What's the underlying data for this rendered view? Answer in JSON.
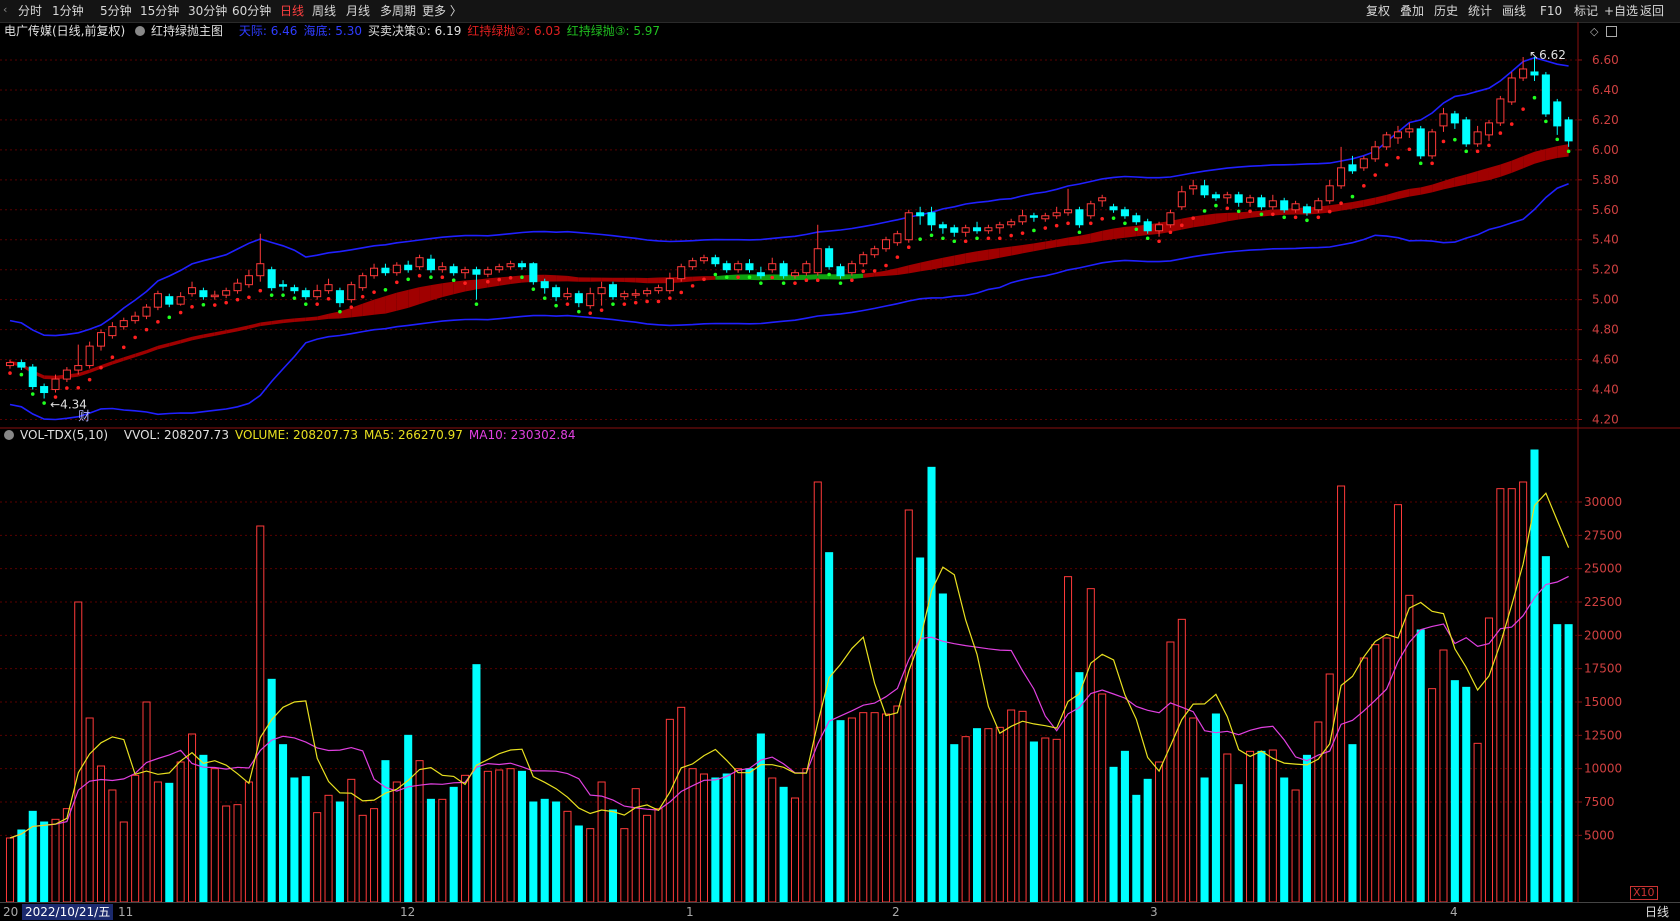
{
  "topbar": {
    "tabs": [
      {
        "label": "分时",
        "active": false
      },
      {
        "label": "1分钟",
        "active": false
      },
      {
        "label": "5分钟",
        "active": false
      },
      {
        "label": "15分钟",
        "active": false
      },
      {
        "label": "30分钟",
        "active": false
      },
      {
        "label": "60分钟",
        "active": false
      },
      {
        "label": "日线",
        "active": true
      },
      {
        "label": "周线",
        "active": false
      },
      {
        "label": "月线",
        "active": false
      },
      {
        "label": "多周期",
        "active": false
      },
      {
        "label": "更多 〉",
        "active": false
      }
    ],
    "right_buttons": [
      "复权",
      "叠加",
      "历史",
      "统计",
      "画线",
      "F10",
      "标记",
      "+自选",
      "返回"
    ]
  },
  "main_indicator": {
    "stock": "电广传媒(日线,前复权)",
    "indicator_name": "红持绿抛主图",
    "items": [
      {
        "label": "天际: 6.46",
        "color": "#2f3cff"
      },
      {
        "label": "海底: 5.30",
        "color": "#2f3cff"
      },
      {
        "label": "买卖决策①: 6.19",
        "color": "#e0e0e0"
      },
      {
        "label": "红持绿抛②: 6.03",
        "color": "#e02020"
      },
      {
        "label": "红持绿抛③: 5.97",
        "color": "#20c020"
      }
    ]
  },
  "volume_indicator": {
    "name": "VOL-TDX(5,10)",
    "items": [
      {
        "label": "VVOL: 208207.73",
        "color": "#e0e0e0"
      },
      {
        "label": "VOLUME: 208207.73",
        "color": "#e8e020"
      },
      {
        "label": "MA5: 266270.97",
        "color": "#e8e020"
      },
      {
        "label": "MA10: 230302.84",
        "color": "#e040e0"
      }
    ]
  },
  "price_axis": [
    "6.60",
    "6.40",
    "6.20",
    "6.00",
    "5.80",
    "5.60",
    "5.40",
    "5.20",
    "5.00",
    "4.80",
    "4.60",
    "4.40",
    "4.20"
  ],
  "volume_axis": [
    "30000",
    "27500",
    "25000",
    "22500",
    "20000",
    "17500",
    "15000",
    "12500",
    "10000",
    "7500",
    "5000"
  ],
  "annotations": {
    "low": "4.34",
    "high": "6.62",
    "fin_marker": "财",
    "scale": "X10"
  },
  "bottom": {
    "cursor_date": "2022/10/21/五",
    "left_tick": "20",
    "months": [
      "11",
      "12",
      "1",
      "2",
      "3",
      "4"
    ],
    "timeframe": "日线"
  },
  "colors": {
    "up": "#ff3a3a",
    "down": "#00ffff",
    "upper_band": "#2020ff",
    "ribbon_red": "#a00000",
    "ribbon_green": "#10a010",
    "ma5": "#e8e020",
    "ma10": "#e040e0",
    "grid": "#5a0000"
  },
  "chart_data": {
    "type": "candlestick",
    "ylim": [
      4.15,
      6.72
    ],
    "candles": [
      {
        "o": 4.56,
        "c": 4.58,
        "h": 4.6,
        "l": 4.54,
        "vol": 4800
      },
      {
        "o": 4.58,
        "c": 4.55,
        "h": 4.6,
        "l": 4.53,
        "vol": 5400
      },
      {
        "o": 4.55,
        "c": 4.42,
        "h": 4.57,
        "l": 4.4,
        "vol": 6800
      },
      {
        "o": 4.42,
        "c": 4.38,
        "h": 4.44,
        "l": 4.34,
        "vol": 6000
      },
      {
        "o": 4.4,
        "c": 4.47,
        "h": 4.5,
        "l": 4.38,
        "vol": 6200
      },
      {
        "o": 4.47,
        "c": 4.53,
        "h": 4.55,
        "l": 4.45,
        "vol": 7000
      },
      {
        "o": 4.53,
        "c": 4.56,
        "h": 4.7,
        "l": 4.5,
        "vol": 22500
      },
      {
        "o": 4.56,
        "c": 4.69,
        "h": 4.72,
        "l": 4.54,
        "vol": 13800
      },
      {
        "o": 4.69,
        "c": 4.78,
        "h": 4.8,
        "l": 4.66,
        "vol": 10200
      },
      {
        "o": 4.76,
        "c": 4.82,
        "h": 4.85,
        "l": 4.74,
        "vol": 8400
      },
      {
        "o": 4.82,
        "c": 4.86,
        "h": 4.88,
        "l": 4.8,
        "vol": 6000
      },
      {
        "o": 4.86,
        "c": 4.89,
        "h": 4.92,
        "l": 4.84,
        "vol": 9500
      },
      {
        "o": 4.89,
        "c": 4.95,
        "h": 4.97,
        "l": 4.87,
        "vol": 15000
      },
      {
        "o": 4.95,
        "c": 5.04,
        "h": 5.06,
        "l": 4.93,
        "vol": 9000
      },
      {
        "o": 5.02,
        "c": 4.97,
        "h": 5.04,
        "l": 4.95,
        "vol": 8900
      },
      {
        "o": 4.97,
        "c": 5.02,
        "h": 5.05,
        "l": 4.96,
        "vol": 10500
      },
      {
        "o": 5.04,
        "c": 5.08,
        "h": 5.12,
        "l": 5.02,
        "vol": 12600
      },
      {
        "o": 5.06,
        "c": 5.02,
        "h": 5.08,
        "l": 5.0,
        "vol": 11000
      },
      {
        "o": 5.02,
        "c": 5.03,
        "h": 5.06,
        "l": 5.0,
        "vol": 10000
      },
      {
        "o": 5.03,
        "c": 5.06,
        "h": 5.08,
        "l": 5.01,
        "vol": 7200
      },
      {
        "o": 5.06,
        "c": 5.11,
        "h": 5.14,
        "l": 5.04,
        "vol": 7300
      },
      {
        "o": 5.1,
        "c": 5.16,
        "h": 5.2,
        "l": 5.08,
        "vol": 9000
      },
      {
        "o": 5.16,
        "c": 5.24,
        "h": 5.44,
        "l": 5.12,
        "vol": 28200
      },
      {
        "o": 5.2,
        "c": 5.08,
        "h": 5.22,
        "l": 5.06,
        "vol": 16700
      },
      {
        "o": 5.1,
        "c": 5.09,
        "h": 5.13,
        "l": 5.06,
        "vol": 11800
      },
      {
        "o": 5.08,
        "c": 5.06,
        "h": 5.1,
        "l": 5.04,
        "vol": 9300
      },
      {
        "o": 5.06,
        "c": 5.02,
        "h": 5.08,
        "l": 5.0,
        "vol": 9400
      },
      {
        "o": 5.02,
        "c": 5.06,
        "h": 5.1,
        "l": 5.0,
        "vol": 6700
      },
      {
        "o": 5.06,
        "c": 5.1,
        "h": 5.14,
        "l": 5.04,
        "vol": 8000
      },
      {
        "o": 5.06,
        "c": 4.98,
        "h": 5.08,
        "l": 4.95,
        "vol": 7500
      },
      {
        "o": 5.0,
        "c": 5.1,
        "h": 5.12,
        "l": 4.98,
        "vol": 9200
      },
      {
        "o": 5.08,
        "c": 5.16,
        "h": 5.18,
        "l": 5.06,
        "vol": 6500
      },
      {
        "o": 5.16,
        "c": 5.21,
        "h": 5.24,
        "l": 5.14,
        "vol": 7000
      },
      {
        "o": 5.21,
        "c": 5.18,
        "h": 5.24,
        "l": 5.16,
        "vol": 10600
      },
      {
        "o": 5.18,
        "c": 5.23,
        "h": 5.25,
        "l": 5.16,
        "vol": 9000
      },
      {
        "o": 5.23,
        "c": 5.2,
        "h": 5.26,
        "l": 5.18,
        "vol": 12500
      },
      {
        "o": 5.22,
        "c": 5.28,
        "h": 5.3,
        "l": 5.2,
        "vol": 10600
      },
      {
        "o": 5.27,
        "c": 5.2,
        "h": 5.3,
        "l": 5.18,
        "vol": 7700
      },
      {
        "o": 5.2,
        "c": 5.22,
        "h": 5.25,
        "l": 5.18,
        "vol": 7700
      },
      {
        "o": 5.22,
        "c": 5.18,
        "h": 5.24,
        "l": 5.16,
        "vol": 8600
      },
      {
        "o": 5.18,
        "c": 5.2,
        "h": 5.22,
        "l": 5.14,
        "vol": 9500
      },
      {
        "o": 5.2,
        "c": 5.17,
        "h": 5.22,
        "l": 5.0,
        "vol": 17800
      },
      {
        "o": 5.17,
        "c": 5.2,
        "h": 5.22,
        "l": 5.15,
        "vol": 9800
      },
      {
        "o": 5.2,
        "c": 5.22,
        "h": 5.24,
        "l": 5.18,
        "vol": 9900
      },
      {
        "o": 5.22,
        "c": 5.24,
        "h": 5.26,
        "l": 5.2,
        "vol": 10000
      },
      {
        "o": 5.24,
        "c": 5.22,
        "h": 5.26,
        "l": 5.2,
        "vol": 9800
      },
      {
        "o": 5.24,
        "c": 5.12,
        "h": 5.25,
        "l": 5.1,
        "vol": 7500
      },
      {
        "o": 5.12,
        "c": 5.08,
        "h": 5.14,
        "l": 5.04,
        "vol": 7700
      },
      {
        "o": 5.08,
        "c": 5.02,
        "h": 5.1,
        "l": 4.99,
        "vol": 7500
      },
      {
        "o": 5.02,
        "c": 5.04,
        "h": 5.08,
        "l": 5.0,
        "vol": 6800
      },
      {
        "o": 5.04,
        "c": 4.98,
        "h": 5.06,
        "l": 4.95,
        "vol": 5700
      },
      {
        "o": 4.96,
        "c": 5.04,
        "h": 5.08,
        "l": 4.94,
        "vol": 5500
      },
      {
        "o": 5.04,
        "c": 5.08,
        "h": 5.12,
        "l": 4.96,
        "vol": 9000
      },
      {
        "o": 5.1,
        "c": 5.02,
        "h": 5.12,
        "l": 5.0,
        "vol": 6900
      },
      {
        "o": 5.02,
        "c": 5.04,
        "h": 5.06,
        "l": 5.0,
        "vol": 5500
      },
      {
        "o": 5.03,
        "c": 5.04,
        "h": 5.07,
        "l": 5.01,
        "vol": 8500
      },
      {
        "o": 5.04,
        "c": 5.06,
        "h": 5.08,
        "l": 5.02,
        "vol": 6500
      },
      {
        "o": 5.06,
        "c": 5.08,
        "h": 5.1,
        "l": 5.04,
        "vol": 7000
      },
      {
        "o": 5.06,
        "c": 5.14,
        "h": 5.18,
        "l": 5.04,
        "vol": 13700
      },
      {
        "o": 5.14,
        "c": 5.22,
        "h": 5.24,
        "l": 5.12,
        "vol": 14600
      },
      {
        "o": 5.22,
        "c": 5.26,
        "h": 5.28,
        "l": 5.2,
        "vol": 10000
      },
      {
        "o": 5.26,
        "c": 5.28,
        "h": 5.3,
        "l": 5.24,
        "vol": 9600
      },
      {
        "o": 5.28,
        "c": 5.24,
        "h": 5.3,
        "l": 5.22,
        "vol": 9300
      },
      {
        "o": 5.24,
        "c": 5.2,
        "h": 5.26,
        "l": 5.18,
        "vol": 9600
      },
      {
        "o": 5.2,
        "c": 5.24,
        "h": 5.26,
        "l": 5.18,
        "vol": 10000
      },
      {
        "o": 5.24,
        "c": 5.2,
        "h": 5.27,
        "l": 5.18,
        "vol": 10000
      },
      {
        "o": 5.18,
        "c": 5.16,
        "h": 5.22,
        "l": 5.14,
        "vol": 12600
      },
      {
        "o": 5.2,
        "c": 5.24,
        "h": 5.28,
        "l": 5.18,
        "vol": 9300
      },
      {
        "o": 5.24,
        "c": 5.16,
        "h": 5.26,
        "l": 5.14,
        "vol": 8600
      },
      {
        "o": 5.16,
        "c": 5.18,
        "h": 5.2,
        "l": 5.14,
        "vol": 7800
      },
      {
        "o": 5.18,
        "c": 5.24,
        "h": 5.26,
        "l": 5.16,
        "vol": 10000
      },
      {
        "o": 5.18,
        "c": 5.34,
        "h": 5.5,
        "l": 5.16,
        "vol": 31500
      },
      {
        "o": 5.34,
        "c": 5.22,
        "h": 5.36,
        "l": 5.2,
        "vol": 26200
      },
      {
        "o": 5.22,
        "c": 5.16,
        "h": 5.24,
        "l": 5.14,
        "vol": 13600
      },
      {
        "o": 5.18,
        "c": 5.24,
        "h": 5.26,
        "l": 5.16,
        "vol": 13800
      },
      {
        "o": 5.24,
        "c": 5.3,
        "h": 5.32,
        "l": 5.22,
        "vol": 14200
      },
      {
        "o": 5.3,
        "c": 5.34,
        "h": 5.36,
        "l": 5.28,
        "vol": 14200
      },
      {
        "o": 5.34,
        "c": 5.4,
        "h": 5.42,
        "l": 5.32,
        "vol": 14100
      },
      {
        "o": 5.38,
        "c": 5.44,
        "h": 5.46,
        "l": 5.36,
        "vol": 14700
      },
      {
        "o": 5.4,
        "c": 5.58,
        "h": 5.6,
        "l": 5.38,
        "vol": 29400
      },
      {
        "o": 5.58,
        "c": 5.56,
        "h": 5.62,
        "l": 5.5,
        "vol": 25800
      },
      {
        "o": 5.58,
        "c": 5.5,
        "h": 5.62,
        "l": 5.46,
        "vol": 32600
      },
      {
        "o": 5.5,
        "c": 5.48,
        "h": 5.52,
        "l": 5.44,
        "vol": 23100
      },
      {
        "o": 5.48,
        "c": 5.45,
        "h": 5.5,
        "l": 5.42,
        "vol": 11800
      },
      {
        "o": 5.45,
        "c": 5.48,
        "h": 5.5,
        "l": 5.42,
        "vol": 12400
      },
      {
        "o": 5.48,
        "c": 5.46,
        "h": 5.52,
        "l": 5.44,
        "vol": 13000
      },
      {
        "o": 5.46,
        "c": 5.48,
        "h": 5.5,
        "l": 5.44,
        "vol": 13000
      },
      {
        "o": 5.48,
        "c": 5.5,
        "h": 5.52,
        "l": 5.44,
        "vol": 13100
      },
      {
        "o": 5.5,
        "c": 5.52,
        "h": 5.54,
        "l": 5.48,
        "vol": 14400
      },
      {
        "o": 5.52,
        "c": 5.56,
        "h": 5.6,
        "l": 5.5,
        "vol": 14300
      },
      {
        "o": 5.56,
        "c": 5.55,
        "h": 5.58,
        "l": 5.52,
        "vol": 12000
      },
      {
        "o": 5.54,
        "c": 5.56,
        "h": 5.58,
        "l": 5.52,
        "vol": 12300
      },
      {
        "o": 5.56,
        "c": 5.58,
        "h": 5.62,
        "l": 5.54,
        "vol": 12200
      },
      {
        "o": 5.58,
        "c": 5.6,
        "h": 5.74,
        "l": 5.56,
        "vol": 24400
      },
      {
        "o": 5.6,
        "c": 5.5,
        "h": 5.62,
        "l": 5.48,
        "vol": 17200
      },
      {
        "o": 5.56,
        "c": 5.64,
        "h": 5.66,
        "l": 5.54,
        "vol": 23500
      },
      {
        "o": 5.66,
        "c": 5.68,
        "h": 5.7,
        "l": 5.62,
        "vol": 15600
      },
      {
        "o": 5.62,
        "c": 5.6,
        "h": 5.64,
        "l": 5.58,
        "vol": 10100
      },
      {
        "o": 5.6,
        "c": 5.56,
        "h": 5.62,
        "l": 5.54,
        "vol": 11300
      },
      {
        "o": 5.56,
        "c": 5.52,
        "h": 5.58,
        "l": 5.5,
        "vol": 8000
      },
      {
        "o": 5.52,
        "c": 5.46,
        "h": 5.54,
        "l": 5.44,
        "vol": 9200
      },
      {
        "o": 5.46,
        "c": 5.5,
        "h": 5.52,
        "l": 5.42,
        "vol": 10500
      },
      {
        "o": 5.5,
        "c": 5.58,
        "h": 5.6,
        "l": 5.48,
        "vol": 19500
      },
      {
        "o": 5.62,
        "c": 5.72,
        "h": 5.76,
        "l": 5.6,
        "vol": 21200
      },
      {
        "o": 5.74,
        "c": 5.76,
        "h": 5.8,
        "l": 5.7,
        "vol": 13800
      },
      {
        "o": 5.76,
        "c": 5.7,
        "h": 5.8,
        "l": 5.68,
        "vol": 9300
      },
      {
        "o": 5.7,
        "c": 5.68,
        "h": 5.72,
        "l": 5.66,
        "vol": 14100
      },
      {
        "o": 5.68,
        "c": 5.7,
        "h": 5.72,
        "l": 5.64,
        "vol": 11100
      },
      {
        "o": 5.7,
        "c": 5.65,
        "h": 5.72,
        "l": 5.62,
        "vol": 8800
      },
      {
        "o": 5.65,
        "c": 5.68,
        "h": 5.7,
        "l": 5.62,
        "vol": 11300
      },
      {
        "o": 5.68,
        "c": 5.62,
        "h": 5.7,
        "l": 5.6,
        "vol": 11300
      },
      {
        "o": 5.62,
        "c": 5.66,
        "h": 5.7,
        "l": 5.6,
        "vol": 11400
      },
      {
        "o": 5.66,
        "c": 5.6,
        "h": 5.68,
        "l": 5.58,
        "vol": 9300
      },
      {
        "o": 5.6,
        "c": 5.64,
        "h": 5.66,
        "l": 5.58,
        "vol": 8400
      },
      {
        "o": 5.62,
        "c": 5.58,
        "h": 5.64,
        "l": 5.56,
        "vol": 11000
      },
      {
        "o": 5.6,
        "c": 5.66,
        "h": 5.68,
        "l": 5.58,
        "vol": 13500
      },
      {
        "o": 5.66,
        "c": 5.76,
        "h": 5.8,
        "l": 5.64,
        "vol": 17100
      },
      {
        "o": 5.76,
        "c": 5.88,
        "h": 6.02,
        "l": 5.74,
        "vol": 31200
      },
      {
        "o": 5.9,
        "c": 5.86,
        "h": 5.96,
        "l": 5.84,
        "vol": 11800
      },
      {
        "o": 5.88,
        "c": 5.94,
        "h": 5.96,
        "l": 5.86,
        "vol": 18300
      },
      {
        "o": 5.94,
        "c": 6.02,
        "h": 6.06,
        "l": 5.92,
        "vol": 19300
      },
      {
        "o": 6.02,
        "c": 6.1,
        "h": 6.12,
        "l": 6.0,
        "vol": 19800
      },
      {
        "o": 6.08,
        "c": 6.12,
        "h": 6.16,
        "l": 6.04,
        "vol": 29800
      },
      {
        "o": 6.12,
        "c": 6.14,
        "h": 6.18,
        "l": 6.08,
        "vol": 23000
      },
      {
        "o": 6.14,
        "c": 5.96,
        "h": 6.16,
        "l": 5.94,
        "vol": 20400
      },
      {
        "o": 5.96,
        "c": 6.12,
        "h": 6.14,
        "l": 5.94,
        "vol": 16000
      },
      {
        "o": 6.16,
        "c": 6.24,
        "h": 6.28,
        "l": 6.12,
        "vol": 18900
      },
      {
        "o": 6.24,
        "c": 6.18,
        "h": 6.26,
        "l": 6.14,
        "vol": 16600
      },
      {
        "o": 6.2,
        "c": 6.04,
        "h": 6.22,
        "l": 6.02,
        "vol": 16100
      },
      {
        "o": 6.04,
        "c": 6.12,
        "h": 6.16,
        "l": 6.02,
        "vol": 11900
      },
      {
        "o": 6.1,
        "c": 6.18,
        "h": 6.2,
        "l": 6.06,
        "vol": 21300
      },
      {
        "o": 6.18,
        "c": 6.34,
        "h": 6.36,
        "l": 6.16,
        "vol": 31000
      },
      {
        "o": 6.32,
        "c": 6.48,
        "h": 6.52,
        "l": 6.3,
        "vol": 31000
      },
      {
        "o": 6.48,
        "c": 6.54,
        "h": 6.62,
        "l": 6.46,
        "vol": 31500
      },
      {
        "o": 6.52,
        "c": 6.5,
        "h": 6.62,
        "l": 6.46,
        "vol": 33900
      },
      {
        "o": 6.5,
        "c": 6.24,
        "h": 6.52,
        "l": 6.22,
        "vol": 25900
      },
      {
        "o": 6.32,
        "c": 6.16,
        "h": 6.34,
        "l": 6.1,
        "vol": 20800
      },
      {
        "o": 6.2,
        "c": 6.06,
        "h": 6.22,
        "l": 6.02,
        "vol": 20800
      }
    ]
  }
}
